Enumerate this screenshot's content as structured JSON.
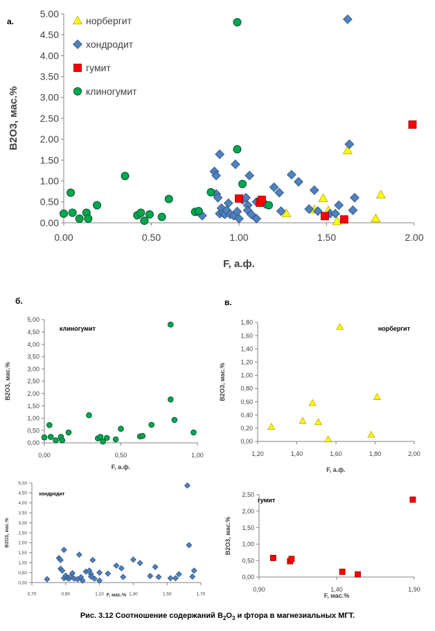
{
  "caption": {
    "prefix": "Рис. 3.12 Соотношение содержаний B",
    "sub": "2",
    "mid": "O",
    "sub2": "3",
    "suffix": " и фтора в магнезиальных МГТ."
  },
  "chart_data": [
    {
      "panel_label": "а.",
      "type": "scatter",
      "xlabel": "F, а.ф.",
      "ylabel": "B2O3, мас.%",
      "xlim": [
        0,
        2
      ],
      "ylim": [
        0,
        5
      ],
      "xticks": [
        "0.00",
        "0.50",
        "1.00",
        "1.50",
        "2.00"
      ],
      "yticks": [
        "0.00",
        "0.50",
        "1.00",
        "1.50",
        "2.00",
        "2.50",
        "3.00",
        "3.50",
        "4.00",
        "4.50",
        "5.00"
      ],
      "legend": "top-left",
      "series": [
        {
          "name": "норбергит",
          "marker": "triangle",
          "color": "#ffff00",
          "points": [
            [
              1.27,
              0.22
            ],
            [
              1.43,
              0.31
            ],
            [
              1.48,
              0.58
            ],
            [
              1.51,
              0.29
            ],
            [
              1.56,
              0.03
            ],
            [
              1.62,
              1.73
            ],
            [
              1.78,
              0.1
            ],
            [
              1.81,
              0.67
            ]
          ]
        },
        {
          "name": "хондродит",
          "marker": "diamond",
          "color": "#4f81bd",
          "points": [
            [
              0.79,
              0.17
            ],
            [
              0.86,
              1.23
            ],
            [
              0.87,
              1.13
            ],
            [
              0.87,
              0.69
            ],
            [
              0.88,
              0.6
            ],
            [
              0.89,
              0.22
            ],
            [
              0.89,
              1.64
            ],
            [
              0.9,
              0.35
            ],
            [
              0.91,
              0.23
            ],
            [
              0.92,
              0.2
            ],
            [
              0.93,
              0.3
            ],
            [
              0.94,
              0.47
            ],
            [
              0.95,
              0.2
            ],
            [
              0.97,
              0.17
            ],
            [
              0.98,
              1.4
            ],
            [
              0.99,
              0.27
            ],
            [
              1.0,
              0.1
            ],
            [
              1.02,
              0.55
            ],
            [
              1.04,
              0.6
            ],
            [
              1.05,
              0.42
            ],
            [
              1.05,
              0.3
            ],
            [
              1.06,
              1.13
            ],
            [
              1.07,
              0.2
            ],
            [
              1.1,
              0.1
            ],
            [
              1.1,
              0.5
            ],
            [
              1.15,
              0.45
            ],
            [
              1.2,
              0.85
            ],
            [
              1.23,
              0.72
            ],
            [
              1.24,
              0.28
            ],
            [
              1.3,
              1.15
            ],
            [
              1.34,
              0.98
            ],
            [
              1.4,
              0.33
            ],
            [
              1.43,
              0.78
            ],
            [
              1.45,
              0.28
            ],
            [
              1.52,
              0.22
            ],
            [
              1.55,
              0.22
            ],
            [
              1.57,
              0.42
            ],
            [
              1.62,
              4.87
            ],
            [
              1.63,
              1.88
            ],
            [
              1.65,
              0.3
            ],
            [
              1.66,
              0.6
            ]
          ]
        },
        {
          "name": "гумит",
          "marker": "square",
          "color": "#ff0000",
          "points": [
            [
              1.0,
              0.58
            ],
            [
              1.12,
              0.48
            ],
            [
              1.13,
              0.55
            ],
            [
              1.49,
              0.16
            ],
            [
              1.6,
              0.08
            ],
            [
              1.99,
              2.35
            ]
          ]
        },
        {
          "name": "клиногумит",
          "marker": "circle",
          "color": "#00a651",
          "points": [
            [
              0.0,
              0.22
            ],
            [
              0.04,
              0.72
            ],
            [
              0.05,
              0.24
            ],
            [
              0.09,
              0.1
            ],
            [
              0.13,
              0.24
            ],
            [
              0.14,
              0.1
            ],
            [
              0.19,
              0.42
            ],
            [
              0.35,
              1.12
            ],
            [
              0.42,
              0.18
            ],
            [
              0.44,
              0.24
            ],
            [
              0.46,
              0.05
            ],
            [
              0.49,
              0.2
            ],
            [
              0.56,
              0.14
            ],
            [
              0.6,
              0.57
            ],
            [
              0.75,
              0.26
            ],
            [
              0.77,
              0.28
            ],
            [
              0.84,
              0.73
            ],
            [
              0.99,
              4.8
            ],
            [
              0.99,
              1.76
            ],
            [
              1.02,
              0.93
            ],
            [
              1.17,
              0.42
            ]
          ]
        }
      ]
    },
    {
      "panel_label": "б.",
      "type": "scatter",
      "title": "клиногумит",
      "xlabel": "F, а.ф.",
      "ylabel": "B2O3, мас.%",
      "xlim": [
        0,
        1.2
      ],
      "ylim": [
        0,
        5
      ],
      "xticks": [
        "0,00",
        "0,50",
        "1,00"
      ],
      "yticks": [
        "0,00",
        "0,50",
        "1,00",
        "1,50",
        "2,00",
        "2,50",
        "3,00",
        "3,50",
        "4,00",
        "4,50",
        "5,00"
      ],
      "marker": "circle",
      "color": "#00a651",
      "points": [
        [
          0.0,
          0.22
        ],
        [
          0.04,
          0.72
        ],
        [
          0.05,
          0.24
        ],
        [
          0.09,
          0.1
        ],
        [
          0.13,
          0.24
        ],
        [
          0.14,
          0.1
        ],
        [
          0.19,
          0.42
        ],
        [
          0.35,
          1.12
        ],
        [
          0.42,
          0.18
        ],
        [
          0.44,
          0.24
        ],
        [
          0.46,
          0.05
        ],
        [
          0.49,
          0.2
        ],
        [
          0.56,
          0.14
        ],
        [
          0.6,
          0.57
        ],
        [
          0.75,
          0.26
        ],
        [
          0.77,
          0.28
        ],
        [
          0.84,
          0.73
        ],
        [
          0.99,
          4.8
        ],
        [
          0.99,
          1.76
        ],
        [
          1.02,
          0.93
        ],
        [
          1.17,
          0.42
        ]
      ]
    },
    {
      "panel_label": "в.",
      "type": "scatter",
      "title": "норбергит",
      "xlabel": "F, а.ф.",
      "ylabel": "B2O3, мас.%",
      "xlim": [
        1.2,
        2.0
      ],
      "ylim": [
        0,
        1.8
      ],
      "xticks": [
        "1,20",
        "1,40",
        "1,60",
        "1,80",
        "2,00"
      ],
      "yticks": [
        "0,00",
        "0,20",
        "0,40",
        "0,60",
        "0,80",
        "1,00",
        "1,20",
        "1,40",
        "1,60",
        "1,80"
      ],
      "marker": "triangle",
      "color": "#ffff00",
      "points": [
        [
          1.27,
          0.22
        ],
        [
          1.43,
          0.31
        ],
        [
          1.48,
          0.58
        ],
        [
          1.51,
          0.29
        ],
        [
          1.56,
          0.03
        ],
        [
          1.62,
          1.73
        ],
        [
          1.78,
          0.1
        ],
        [
          1.81,
          0.67
        ]
      ]
    },
    {
      "panel_label": "",
      "type": "scatter",
      "title": "хондродит",
      "xlabel": "F, мас.%",
      "ylabel": "B2O3, мас.%",
      "xlim": [
        0.7,
        1.7
      ],
      "ylim": [
        0,
        5
      ],
      "xticks": [
        "0,70",
        "0,90",
        "1,10",
        "1,30",
        "1,50",
        "1,70"
      ],
      "yticks": [
        "0,00",
        "0,50",
        "1,00",
        "1,50",
        "2,00",
        "2,50",
        "3,00",
        "3,50",
        "4,00",
        "4,50",
        "5,00"
      ],
      "marker": "diamond",
      "color": "#4f81bd",
      "points": [
        [
          0.79,
          0.17
        ],
        [
          0.86,
          1.23
        ],
        [
          0.87,
          1.13
        ],
        [
          0.87,
          0.69
        ],
        [
          0.88,
          0.6
        ],
        [
          0.89,
          0.22
        ],
        [
          0.89,
          1.64
        ],
        [
          0.9,
          0.35
        ],
        [
          0.91,
          0.23
        ],
        [
          0.92,
          0.2
        ],
        [
          0.93,
          0.3
        ],
        [
          0.94,
          0.47
        ],
        [
          0.95,
          0.2
        ],
        [
          0.97,
          0.17
        ],
        [
          0.98,
          1.4
        ],
        [
          0.99,
          0.27
        ],
        [
          1.0,
          0.1
        ],
        [
          1.02,
          0.55
        ],
        [
          1.04,
          0.6
        ],
        [
          1.05,
          0.42
        ],
        [
          1.05,
          0.3
        ],
        [
          1.06,
          1.13
        ],
        [
          1.07,
          0.2
        ],
        [
          1.1,
          0.1
        ],
        [
          1.1,
          0.5
        ],
        [
          1.15,
          0.45
        ],
        [
          1.2,
          0.85
        ],
        [
          1.23,
          0.72
        ],
        [
          1.24,
          0.28
        ],
        [
          1.3,
          1.15
        ],
        [
          1.34,
          0.98
        ],
        [
          1.4,
          0.33
        ],
        [
          1.43,
          0.78
        ],
        [
          1.45,
          0.28
        ],
        [
          1.52,
          0.22
        ],
        [
          1.55,
          0.22
        ],
        [
          1.57,
          0.42
        ],
        [
          1.62,
          4.87
        ],
        [
          1.63,
          1.88
        ],
        [
          1.65,
          0.3
        ],
        [
          1.66,
          0.6
        ]
      ]
    },
    {
      "panel_label": "",
      "type": "scatter",
      "title": "гумит",
      "xlabel": "F, мас.%",
      "ylabel": "B2O3, мас.%",
      "xlim": [
        0.9,
        2.0
      ],
      "ylim": [
        0,
        2.5
      ],
      "xticks": [
        "0,90",
        "1,40",
        "1,90"
      ],
      "yticks": [
        "0,00",
        "0,50",
        "1,00",
        "1,50",
        "2,00",
        "2,50"
      ],
      "marker": "square",
      "color": "#ff0000",
      "points": [
        [
          1.0,
          0.58
        ],
        [
          1.12,
          0.48
        ],
        [
          1.13,
          0.55
        ],
        [
          1.49,
          0.16
        ],
        [
          1.6,
          0.08
        ],
        [
          1.99,
          2.35
        ]
      ]
    }
  ]
}
